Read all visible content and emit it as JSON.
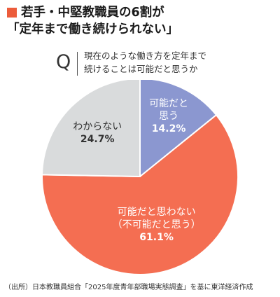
{
  "header": {
    "title_line1": "若手・中堅教職員の6割が",
    "title_line2": "「定年まで働き続けられない」",
    "accent_color": "#ec5c3b"
  },
  "question": {
    "letter": "Q",
    "line1": "現在のような働き方を定年まで",
    "line2": "続けることは可能だと思うか"
  },
  "chart_data": {
    "type": "pie",
    "slices": [
      {
        "label_lines": [
          "可能だと",
          "思う"
        ],
        "percent_label": "14.2%",
        "value": 14.2,
        "color": "#8b97d0"
      },
      {
        "label_lines": [
          "可能だと思わない",
          "（不可能だと思う）"
        ],
        "percent_label": "61.1%",
        "value": 61.1,
        "color": "#f46e52"
      },
      {
        "label_lines": [
          "わからない"
        ],
        "percent_label": "24.7%",
        "value": 24.7,
        "color": "#d9dbdc"
      }
    ]
  },
  "footer": {
    "source": "（出所）日本教職員組合「2025年度青年部職場実態調査」を基に東洋経済作成"
  }
}
